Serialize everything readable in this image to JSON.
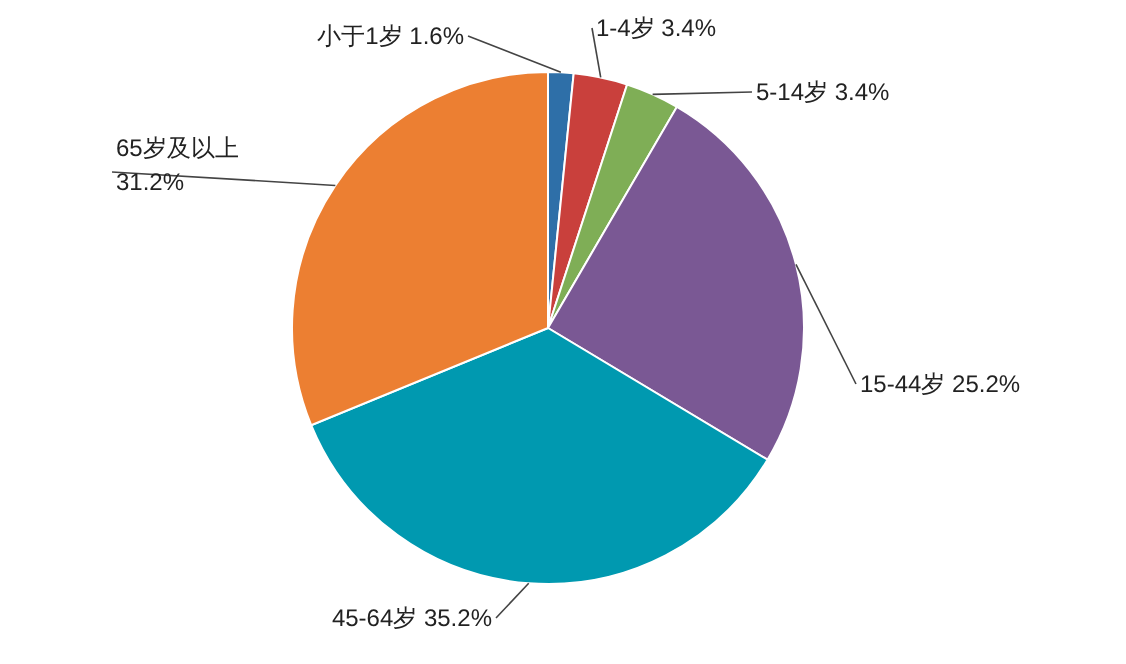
{
  "chart_data": {
    "type": "pie",
    "categories": [
      "小于1岁",
      "1-4岁",
      "5-14岁",
      "15-44岁",
      "45-64岁",
      "65岁及以上"
    ],
    "values": [
      1.6,
      3.4,
      3.4,
      25.2,
      35.2,
      31.2
    ],
    "colors": [
      "#2e6fa8",
      "#c9403c",
      "#7fae56",
      "#7a5894",
      "#0099b0",
      "#ec7f32"
    ],
    "value_labels": [
      "1.6%",
      "3.4%",
      "3.4%",
      "25.2%",
      "35.2%",
      "31.2%"
    ]
  }
}
